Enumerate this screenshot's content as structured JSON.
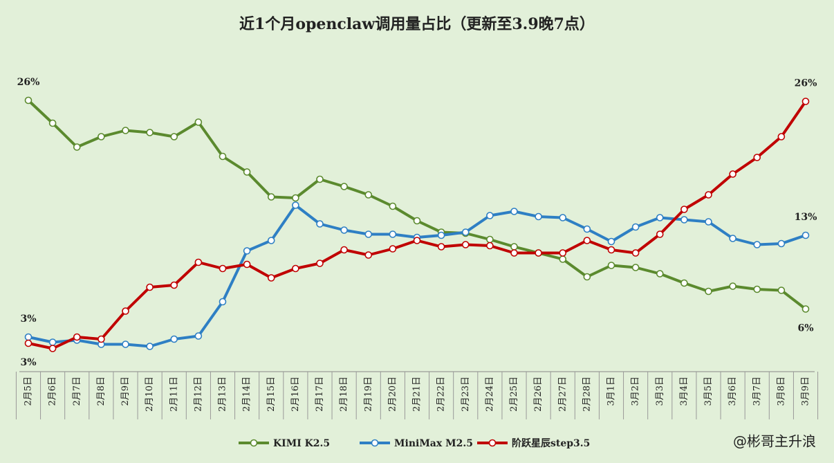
{
  "chart_data": {
    "type": "line",
    "title": "近1个月openclaw调用量占比（更新至3.9晚7点）",
    "categories": [
      "2月5日",
      "2月6日",
      "2月7日",
      "2月8日",
      "2月9日",
      "2月10日",
      "2月11日",
      "2月12日",
      "2月13日",
      "2月14日",
      "2月15日",
      "2月16日",
      "2月17日",
      "2月18日",
      "2月19日",
      "2月20日",
      "2月21日",
      "2月22日",
      "2月23日",
      "2月24日",
      "2月25日",
      "2月26日",
      "2月27日",
      "2月28日",
      "3月1日",
      "3月2日",
      "3月3日",
      "3月4日",
      "3月5日",
      "3月6日",
      "3月7日",
      "3月8日",
      "3月9日"
    ],
    "series": [
      {
        "name": "KIMI K2.5",
        "color": "#5b8a2e",
        "values": [
          26.0,
          23.8,
          21.5,
          22.5,
          23.1,
          22.9,
          22.5,
          23.9,
          20.6,
          19.1,
          16.7,
          16.6,
          18.4,
          17.7,
          16.9,
          15.8,
          14.4,
          13.3,
          13.2,
          12.6,
          11.9,
          11.3,
          10.7,
          9.0,
          10.1,
          9.9,
          9.3,
          8.4,
          7.6,
          8.1,
          7.8,
          7.7,
          5.9
        ],
        "value_labels": [
          "26%",
          null,
          null,
          null,
          null,
          null,
          null,
          null,
          null,
          null,
          null,
          null,
          null,
          null,
          null,
          null,
          null,
          null,
          null,
          null,
          null,
          null,
          null,
          null,
          null,
          null,
          null,
          null,
          null,
          null,
          null,
          null,
          "6%"
        ]
      },
      {
        "name": "MiniMax M2.5",
        "color": "#2e7fc4",
        "values": [
          3.2,
          2.7,
          2.9,
          2.5,
          2.5,
          2.3,
          3.0,
          3.3,
          6.6,
          11.5,
          12.5,
          15.9,
          14.1,
          13.5,
          13.1,
          13.1,
          12.8,
          13.0,
          13.3,
          14.9,
          15.3,
          14.8,
          14.7,
          13.6,
          12.4,
          13.8,
          14.7,
          14.5,
          14.3,
          12.7,
          12.1,
          12.2,
          13.0
        ],
        "value_labels": [
          "3%",
          null,
          null,
          null,
          null,
          null,
          null,
          null,
          null,
          null,
          null,
          null,
          null,
          null,
          null,
          null,
          null,
          null,
          null,
          null,
          null,
          null,
          null,
          null,
          null,
          null,
          null,
          null,
          null,
          null,
          null,
          null,
          "13%"
        ]
      },
      {
        "name": "阶跃星辰step3.5",
        "color": "#c00000",
        "values": [
          2.6,
          2.1,
          3.2,
          3.0,
          5.7,
          8.0,
          8.2,
          10.4,
          9.8,
          10.2,
          8.9,
          9.8,
          10.3,
          11.6,
          11.1,
          11.7,
          12.5,
          11.9,
          12.1,
          12.0,
          11.3,
          11.3,
          11.3,
          12.5,
          11.6,
          11.3,
          13.1,
          15.5,
          16.9,
          18.9,
          20.5,
          22.5,
          25.9
        ],
        "value_labels": [
          "3%",
          null,
          null,
          null,
          null,
          null,
          null,
          null,
          null,
          null,
          null,
          null,
          null,
          null,
          null,
          null,
          null,
          null,
          null,
          null,
          null,
          null,
          null,
          null,
          null,
          null,
          null,
          null,
          null,
          null,
          null,
          null,
          "26%"
        ]
      }
    ],
    "watermark": "@彬哥主升浪"
  }
}
